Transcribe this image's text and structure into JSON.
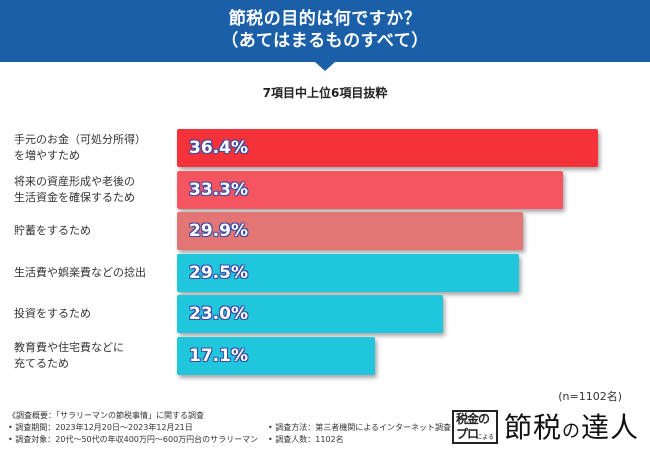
{
  "header": {
    "title_line1": "節税の目的は何ですか？",
    "title_line2": "（あてはまるものすべて）"
  },
  "subtitle": "7項目中上位6項目抜粋",
  "chart_data": {
    "type": "bar",
    "orientation": "horizontal",
    "title": "節税の目的は何ですか？（あてはまるものすべて）",
    "subtitle": "7項目中上位6項目抜粋",
    "categories": [
      [
        "手元のお金（可処分所得）",
        "を増やすため"
      ],
      [
        "将来の資産形成や老後の",
        "生活資金を確保するため"
      ],
      [
        "貯蓄をするため"
      ],
      [
        "生活費や娯楽費などの捻出"
      ],
      [
        "投資をするため"
      ],
      [
        "教育費や住宅費などに",
        "充てるため"
      ]
    ],
    "values": [
      36.4,
      33.3,
      29.9,
      29.5,
      23.0,
      17.1
    ],
    "labels": [
      "36.4%",
      "33.3%",
      "29.9%",
      "29.5%",
      "23.0%",
      "17.1%"
    ],
    "colors": [
      "#f5323a",
      "#f55560",
      "#e47575",
      "#1fc6dc",
      "#1fc6dc",
      "#1fc6dc"
    ],
    "unit": "%",
    "xlim": [
      0,
      38
    ]
  },
  "sample_size": "(n=1102名)",
  "survey": {
    "overview": "《調査概要：「サラリーマンの節税事情」に関する調査",
    "period": "• 調査期間：2023年12月20日〜2023年12月21日",
    "target": "• 調査対象：20代〜50代の年収400万円〜600万円台のサラリーマン",
    "method": "• 調査方法：第三者機関によるインターネット調査",
    "count": "• 調査人数：1102名"
  },
  "logo": {
    "box_text_1": "税金の",
    "box_text_2": "プロ",
    "box_small": "による",
    "main_1": "節税",
    "main_no": "の",
    "main_2": "達人"
  }
}
